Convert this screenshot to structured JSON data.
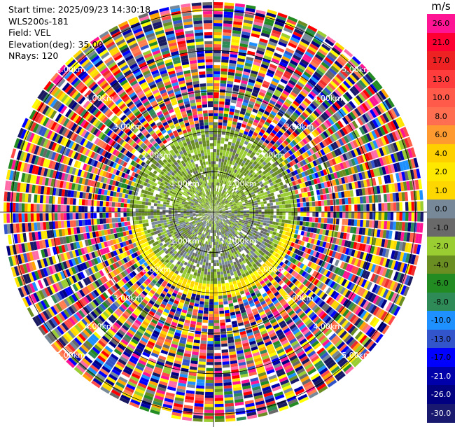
{
  "header": {
    "start_time": "Start time: 2025/09/23 14:30:18",
    "instrument": "WLS200s-181",
    "field": "Field: VEL",
    "elevation": "Elevation(deg): 35.00",
    "nrays": "NRays: 120"
  },
  "chart_data": {
    "type": "heatmap",
    "projection": "polar-ppi",
    "field": "VEL",
    "units": "m/s",
    "nrays": 120,
    "elevation_deg": 35.0,
    "range_rings_km": [
      1.0,
      2.0,
      3.0,
      4.0,
      5.0
    ],
    "range_ring_labels": [
      "1.00km",
      "2.00km",
      "3.00km",
      "4.00km",
      "5.00km"
    ],
    "max_range_km": 5.2,
    "colorbar": {
      "label": "m/s",
      "ticks": [
        "26.0",
        "21.0",
        "17.0",
        "13.0",
        "10.0",
        "8.0",
        "6.0",
        "4.0",
        "2.0",
        "1.0",
        "0.0",
        "-1.0",
        "-2.0",
        "-4.0",
        "-6.0",
        "-8.0",
        "-10.0",
        "-13.0",
        "-17.0",
        "-21.0",
        "-26.0",
        "-30.0"
      ],
      "colors": [
        "#ff1493",
        "#ff6aa8",
        "#ff0000",
        "#ee2c2c",
        "#ff4a4a",
        "#ff6347",
        "#ff7f50",
        "#ffa500",
        "#ffd700",
        "#ffff00",
        "#ffe600",
        "#778899",
        "#696969",
        "#9acd32",
        "#6b8e23",
        "#228b22",
        "#2e8b57",
        "#1e90ff",
        "#3355cc",
        "#0000ff",
        "#0000aa",
        "#000080",
        "#191970",
        "#1a1a60"
      ]
    },
    "regions": [
      {
        "range_km": [
          0.0,
          2.1
        ],
        "description": "near-zero velocities",
        "colors": [
          "#778899",
          "#696969",
          "#9acd32",
          "#6b8e23"
        ]
      },
      {
        "range_km": [
          1.8,
          2.1
        ],
        "sector": "south",
        "colors": [
          "#ffd700",
          "#ffff00"
        ]
      },
      {
        "range_km": [
          2.1,
          5.2
        ],
        "description": "noise (random velocities)"
      }
    ]
  }
}
